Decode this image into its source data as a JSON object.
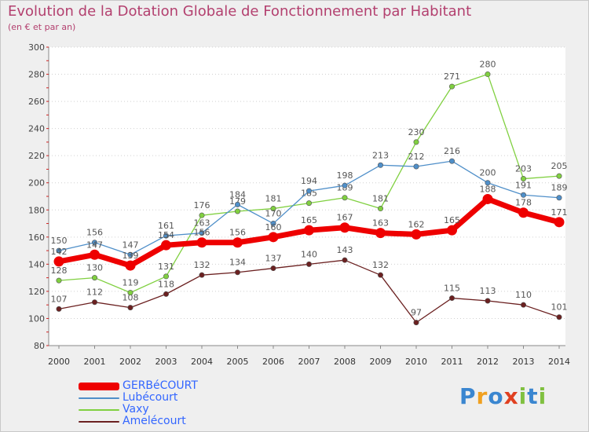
{
  "title": "Evolution de la Dotation Globale de Fonctionnement par Habitant",
  "subtitle": "(en € et par an)",
  "chart_data": {
    "type": "line",
    "title": "Evolution de la Dotation Globale de Fonctionnement par Habitant",
    "subtitle": "(en € et par an)",
    "xlabel": "",
    "ylabel": "",
    "ylim": [
      80,
      300
    ],
    "yticks": [
      80,
      100,
      120,
      140,
      160,
      180,
      200,
      220,
      240,
      260,
      280,
      300
    ],
    "categories": [
      "2000",
      "2001",
      "2002",
      "2003",
      "2004",
      "2005",
      "2006",
      "2007",
      "2008",
      "2009",
      "2010",
      "2011",
      "2012",
      "2013",
      "2014"
    ],
    "grid": "horizontal dotted",
    "legend_position": "bottom-left",
    "series": [
      {
        "name": "GERBéCOURT",
        "color": "#ee0000",
        "values": [
          142,
          147,
          139,
          154,
          156,
          156,
          160,
          165,
          167,
          163,
          162,
          165,
          188,
          178,
          171
        ]
      },
      {
        "name": "Lubécourt",
        "color": "#4f8fc9",
        "values": [
          150,
          156,
          147,
          161,
          163,
          184,
          170,
          194,
          198,
          213,
          212,
          216,
          200,
          191,
          189
        ]
      },
      {
        "name": "Vaxy",
        "color": "#80d040",
        "values": [
          128,
          130,
          119,
          131,
          176,
          179,
          181,
          185,
          189,
          181,
          230,
          271,
          280,
          203,
          205
        ]
      },
      {
        "name": "Amelécourt",
        "color": "#6b2020",
        "values": [
          107,
          112,
          108,
          118,
          132,
          134,
          137,
          140,
          143,
          132,
          97,
          115,
          113,
          110,
          101
        ]
      }
    ]
  },
  "logo": {
    "text": "Proxiti",
    "letters": [
      {
        "ch": "P",
        "color": "#3a86d0"
      },
      {
        "ch": "r",
        "color": "#f0a020"
      },
      {
        "ch": "o",
        "color": "#3a86d0"
      },
      {
        "ch": "x",
        "color": "#e04020"
      },
      {
        "ch": "i",
        "color": "#80c040"
      },
      {
        "ch": "t",
        "color": "#3a86d0"
      },
      {
        "ch": "i",
        "color": "#80c040"
      }
    ]
  }
}
